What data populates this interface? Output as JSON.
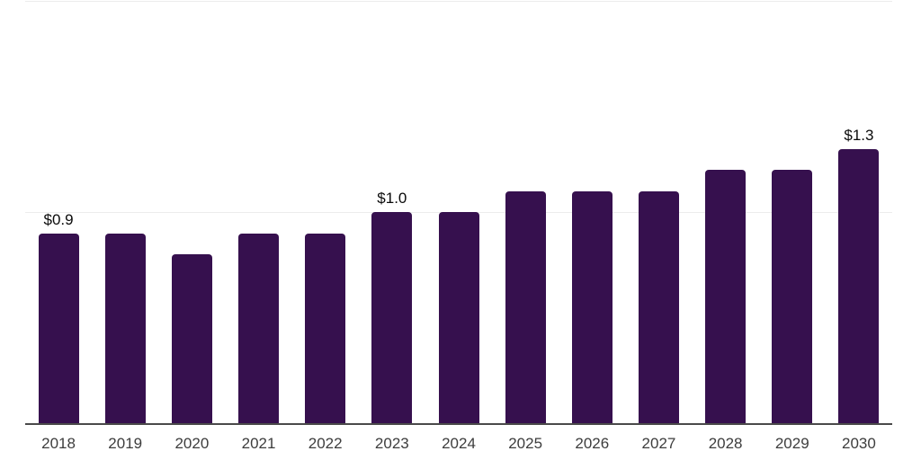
{
  "chart_data": {
    "type": "bar",
    "categories": [
      "2018",
      "2019",
      "2020",
      "2021",
      "2022",
      "2023",
      "2024",
      "2025",
      "2026",
      "2027",
      "2028",
      "2029",
      "2030"
    ],
    "values": [
      0.9,
      0.9,
      0.8,
      0.9,
      0.9,
      1.0,
      1.0,
      1.1,
      1.1,
      1.1,
      1.2,
      1.2,
      1.3
    ],
    "data_labels": [
      "$0.9",
      "",
      "",
      "",
      "",
      "$1.0",
      "",
      "",
      "",
      "",
      "",
      "",
      "$1.3"
    ],
    "ylim": [
      0,
      2.0
    ],
    "gridline_values": [
      1.0,
      2.0
    ],
    "grid": true,
    "legend": false,
    "colors": {
      "bar": "#36104E",
      "grid": "#ececec",
      "axis": "#4a4a4a",
      "data_label": "#0a0a0a",
      "tick_label": "#3d3d3d",
      "background": "#ffffff"
    }
  }
}
